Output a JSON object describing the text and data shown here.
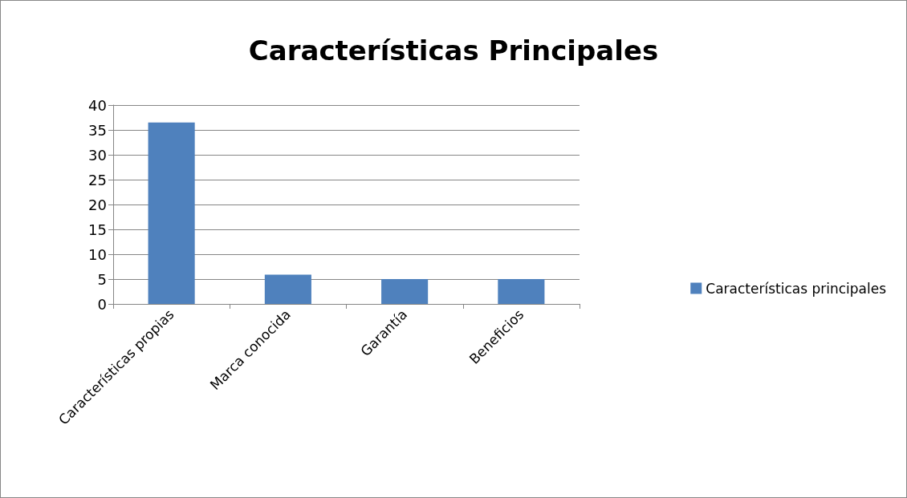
{
  "chart_data": {
    "type": "bar",
    "title": "Características Principales",
    "categories": [
      "Características propias",
      "Marca conocida",
      "Garantía",
      "Beneficios"
    ],
    "series": [
      {
        "name": "Características principales",
        "color": "#4f81bd",
        "values": [
          36.5,
          5.9,
          5,
          5
        ]
      }
    ],
    "ylim": [
      0,
      40
    ],
    "yticks": [
      0,
      5,
      10,
      15,
      20,
      25,
      30,
      35,
      40
    ],
    "grid": "y",
    "legend": "right"
  }
}
